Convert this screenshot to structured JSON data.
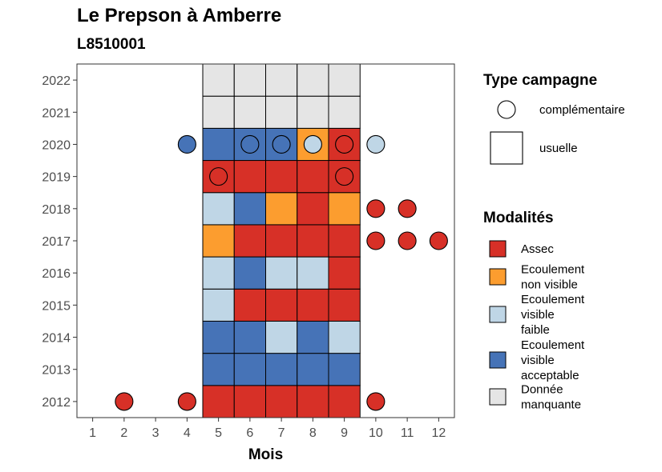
{
  "chart_data": {
    "type": "heatmap",
    "title": "Le Prepson à Amberre",
    "subtitle": "L8510001",
    "xlabel": "Mois",
    "ylabel": "",
    "x_ticks": [
      1,
      2,
      3,
      4,
      5,
      6,
      7,
      8,
      9,
      10,
      11,
      12
    ],
    "y_ticks": [
      2012,
      2013,
      2014,
      2015,
      2016,
      2017,
      2018,
      2019,
      2020,
      2021,
      2022
    ],
    "xlim": [
      0.5,
      12.5
    ],
    "ylim": [
      2011.5,
      2022.5
    ],
    "grid": false,
    "legend_position": "right",
    "colors": {
      "assec": "#d73027",
      "ecoulement_non_visible": "#fc9d2f",
      "ecoulement_visible_faible": "#bfd6e6",
      "ecoulement_visible_acceptable": "#4673b7",
      "donnee_manquante": "#e5e5e5"
    },
    "usuelle": [
      {
        "year": 2012,
        "months": [
          "assec",
          "assec",
          "assec",
          "assec",
          "assec"
        ]
      },
      {
        "year": 2013,
        "months": [
          "ecoulement_visible_acceptable",
          "ecoulement_visible_acceptable",
          "ecoulement_visible_acceptable",
          "ecoulement_visible_acceptable",
          "ecoulement_visible_acceptable"
        ]
      },
      {
        "year": 2014,
        "months": [
          "ecoulement_visible_acceptable",
          "ecoulement_visible_acceptable",
          "ecoulement_visible_faible",
          "ecoulement_visible_acceptable",
          "ecoulement_visible_faible"
        ]
      },
      {
        "year": 2015,
        "months": [
          "ecoulement_visible_faible",
          "assec",
          "assec",
          "assec",
          "assec"
        ]
      },
      {
        "year": 2016,
        "months": [
          "ecoulement_visible_faible",
          "ecoulement_visible_acceptable",
          "ecoulement_visible_faible",
          "ecoulement_visible_faible",
          "assec"
        ]
      },
      {
        "year": 2017,
        "months": [
          "ecoulement_non_visible",
          "assec",
          "assec",
          "assec",
          "assec"
        ]
      },
      {
        "year": 2018,
        "months": [
          "ecoulement_visible_faible",
          "ecoulement_visible_acceptable",
          "ecoulement_non_visible",
          "assec",
          "ecoulement_non_visible"
        ]
      },
      {
        "year": 2019,
        "months": [
          "assec",
          "assec",
          "assec",
          "assec",
          "assec"
        ]
      },
      {
        "year": 2020,
        "months": [
          "ecoulement_visible_acceptable",
          "ecoulement_visible_acceptable",
          "ecoulement_visible_acceptable",
          "ecoulement_non_visible",
          "assec"
        ]
      },
      {
        "year": 2021,
        "months": [
          "donnee_manquante",
          "donnee_manquante",
          "donnee_manquante",
          "donnee_manquante",
          "donnee_manquante"
        ]
      },
      {
        "year": 2022,
        "months": [
          "donnee_manquante",
          "donnee_manquante",
          "donnee_manquante",
          "donnee_manquante",
          "donnee_manquante"
        ]
      }
    ],
    "usuelle_months": [
      5,
      6,
      7,
      8,
      9
    ],
    "complementaire": [
      {
        "month": 2,
        "year": 2012,
        "modalite": "assec"
      },
      {
        "month": 4,
        "year": 2012,
        "modalite": "assec"
      },
      {
        "month": 10,
        "year": 2012,
        "modalite": "assec"
      },
      {
        "month": 10,
        "year": 2017,
        "modalite": "assec"
      },
      {
        "month": 11,
        "year": 2017,
        "modalite": "assec"
      },
      {
        "month": 12,
        "year": 2017,
        "modalite": "assec"
      },
      {
        "month": 10,
        "year": 2018,
        "modalite": "assec"
      },
      {
        "month": 11,
        "year": 2018,
        "modalite": "assec"
      },
      {
        "month": 5,
        "year": 2019,
        "modalite": "assec"
      },
      {
        "month": 9,
        "year": 2019,
        "modalite": "assec"
      },
      {
        "month": 4,
        "year": 2020,
        "modalite": "ecoulement_visible_acceptable"
      },
      {
        "month": 6,
        "year": 2020,
        "modalite": "ecoulement_visible_acceptable"
      },
      {
        "month": 7,
        "year": 2020,
        "modalite": "ecoulement_visible_acceptable"
      },
      {
        "month": 8,
        "year": 2020,
        "modalite": "ecoulement_visible_faible"
      },
      {
        "month": 9,
        "year": 2020,
        "modalite": "assec"
      },
      {
        "month": 10,
        "year": 2020,
        "modalite": "ecoulement_visible_faible"
      }
    ],
    "legend_type": {
      "title": "Type campagne",
      "items": [
        {
          "key": "complementaire",
          "label": "complémentaire"
        },
        {
          "key": "usuelle",
          "label": "usuelle"
        }
      ]
    },
    "legend_modalites": {
      "title": "Modalités",
      "items": [
        {
          "key": "assec",
          "lines": [
            "Assec"
          ]
        },
        {
          "key": "ecoulement_non_visible",
          "lines": [
            "Ecoulement",
            "non visible"
          ]
        },
        {
          "key": "ecoulement_visible_faible",
          "lines": [
            "Ecoulement",
            "visible",
            "faible"
          ]
        },
        {
          "key": "ecoulement_visible_acceptable",
          "lines": [
            "Ecoulement",
            "visible",
            "acceptable"
          ]
        },
        {
          "key": "donnee_manquante",
          "lines": [
            "Donnée",
            "manquante"
          ]
        }
      ]
    }
  }
}
